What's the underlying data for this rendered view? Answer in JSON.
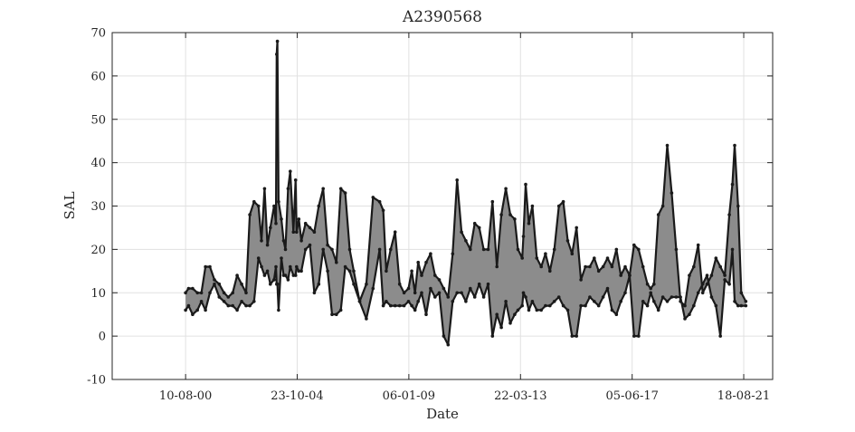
{
  "chart_data": {
    "type": "line",
    "title": "A2390568",
    "xlabel": "Date",
    "ylabel": "SAL",
    "ylim": [
      -10,
      70
    ],
    "yticks": [
      "-10",
      "0",
      "10",
      "20",
      "30",
      "40",
      "50",
      "60",
      "70"
    ],
    "xlim": [
      "1997-11-04",
      "2022-09-20"
    ],
    "xticks": [
      {
        "date": "2000-08-10",
        "label": "10-08-00"
      },
      {
        "date": "2004-10-23",
        "label": "23-10-04"
      },
      {
        "date": "2009-01-06",
        "label": "06-01-09"
      },
      {
        "date": "2013-03-22",
        "label": "22-03-13"
      },
      {
        "date": "2017-06-05",
        "label": "05-06-17"
      },
      {
        "date": "2021-08-18",
        "label": "18-08-21"
      }
    ],
    "grid": true,
    "legend": "none",
    "colors": {
      "band": "#8c8c8c",
      "line": "#1a1a1a",
      "grid": "#e1e1e1",
      "axis": "#262626"
    },
    "series": [
      {
        "style": "dense-band",
        "x": [
          "2000-08-10",
          "2000-09-20",
          "2000-11-15",
          "2001-01-20",
          "2001-03-15",
          "2001-05-10",
          "2001-07-10",
          "2001-09-10",
          "2001-11-15",
          "2002-01-20",
          "2002-03-20",
          "2002-05-20",
          "2002-07-20",
          "2002-09-20",
          "2002-11-20",
          "2003-01-10",
          "2003-03-10",
          "2003-05-10",
          "2003-06-20",
          "2003-08-01",
          "2003-09-10",
          "2003-10-20",
          "2003-12-10",
          "2004-01-05",
          "2004-01-15",
          "2004-01-25",
          "2004-02-10",
          "2004-03-20",
          "2004-04-20",
          "2004-05-15",
          "2004-06-20",
          "2004-07-20",
          "2004-09-01",
          "2004-10-01",
          "2004-10-15",
          "2004-11-15",
          "2004-12-20",
          "2005-02-15",
          "2005-04-15",
          "2005-06-15",
          "2005-08-15",
          "2005-10-15",
          "2005-12-15",
          "2006-02-15",
          "2006-04-15",
          "2006-06-15",
          "2006-08-15",
          "2006-10-15",
          "2006-12-10",
          "2007-03-01",
          "2007-06-01",
          "2007-09-01",
          "2007-12-01",
          "2008-01-20",
          "2008-03-01",
          "2008-05-01",
          "2008-07-01",
          "2008-09-01",
          "2008-11-01",
          "2009-01-01",
          "2009-02-15",
          "2009-04-01",
          "2009-05-15",
          "2009-07-01",
          "2009-09-01",
          "2009-11-01",
          "2010-01-01",
          "2010-03-01",
          "2010-05-01",
          "2010-07-01",
          "2010-09-01",
          "2010-11-01",
          "2011-01-01",
          "2011-03-01",
          "2011-05-01",
          "2011-07-01",
          "2011-09-01",
          "2011-11-01",
          "2012-01-01",
          "2012-03-01",
          "2012-05-01",
          "2012-07-01",
          "2012-09-01",
          "2012-11-01",
          "2013-01-01",
          "2013-02-15",
          "2013-04-15",
          "2013-05-01",
          "2013-06-01",
          "2013-07-15",
          "2013-09-01",
          "2013-11-01",
          "2014-01-01",
          "2014-03-01",
          "2014-05-01",
          "2014-07-01",
          "2014-09-01",
          "2014-11-01",
          "2015-01-01",
          "2015-03-01",
          "2015-05-01",
          "2015-07-01",
          "2015-09-01",
          "2015-11-01",
          "2016-01-01",
          "2016-03-01",
          "2016-05-01",
          "2016-07-01",
          "2016-09-01",
          "2016-11-01",
          "2017-01-01",
          "2017-03-01",
          "2017-05-01",
          "2017-07-01",
          "2017-09-01",
          "2017-11-01",
          "2018-01-01",
          "2018-02-15",
          "2018-04-01",
          "2018-06-01",
          "2018-08-01",
          "2018-10-01",
          "2018-12-01",
          "2019-02-01",
          "2019-04-01",
          "2019-06-01",
          "2019-08-01",
          "2019-10-01",
          "2019-12-01",
          "2020-02-01",
          "2020-04-01",
          "2020-06-01",
          "2020-08-01",
          "2020-10-01",
          "2020-12-01",
          "2021-02-01",
          "2021-03-15",
          "2021-04-15",
          "2021-06-01",
          "2021-07-15",
          "2021-09-15"
        ],
        "y_low": [
          6,
          7,
          5,
          6,
          8,
          6,
          10,
          12,
          9,
          8,
          7,
          7,
          6,
          8,
          7,
          7,
          8,
          18,
          16,
          14,
          15,
          12,
          13,
          16,
          12,
          12,
          6,
          18,
          14,
          14,
          13,
          16,
          14,
          14,
          16,
          15,
          15,
          20,
          21,
          10,
          12,
          20,
          15,
          5,
          5,
          6,
          16,
          15,
          12,
          8,
          4,
          11,
          20,
          7,
          8,
          7,
          7,
          7,
          7,
          8,
          7,
          6,
          8,
          10,
          5,
          11,
          9,
          10,
          0,
          -2,
          8,
          10,
          10,
          8,
          11,
          9,
          12,
          9,
          12,
          0,
          5,
          2,
          8,
          3,
          5,
          6,
          7,
          10,
          9,
          6,
          8,
          6,
          6,
          7,
          7,
          8,
          9,
          7,
          6,
          0,
          0,
          7,
          7,
          9,
          8,
          7,
          9,
          11,
          6,
          5,
          8,
          10,
          14,
          0,
          0,
          8,
          7,
          10,
          8,
          6,
          9,
          8,
          9,
          9,
          9,
          4,
          5,
          7,
          10,
          12,
          14,
          9,
          7,
          0,
          13,
          12,
          20,
          8,
          7,
          7,
          7
        ],
        "y_high": [
          10,
          11,
          11,
          10,
          10,
          16,
          16,
          13,
          12,
          10,
          9,
          10,
          14,
          12,
          10,
          28,
          31,
          30,
          22,
          34,
          21,
          25,
          30,
          26,
          65,
          68,
          31,
          27,
          22,
          20,
          34,
          38,
          24,
          36,
          24,
          27,
          22,
          26,
          25,
          24,
          30,
          34,
          21,
          20,
          17,
          34,
          33,
          20,
          15,
          8,
          12,
          32,
          31,
          29,
          15,
          20,
          24,
          12,
          10,
          11,
          15,
          10,
          17,
          14,
          17,
          19,
          14,
          13,
          11,
          9,
          19,
          36,
          24,
          22,
          20,
          26,
          25,
          20,
          20,
          31,
          16,
          28,
          34,
          28,
          27,
          20,
          18,
          23,
          35,
          26,
          30,
          18,
          16,
          19,
          15,
          20,
          30,
          31,
          22,
          19,
          25,
          13,
          16,
          16,
          18,
          15,
          16,
          18,
          16,
          20,
          14,
          16,
          14,
          21,
          20,
          16,
          12,
          11,
          12,
          28,
          30,
          44,
          33,
          20,
          8,
          7,
          14,
          16,
          21,
          10,
          12,
          14,
          18,
          16,
          14,
          28,
          35,
          44,
          30,
          10,
          8
        ]
      }
    ]
  }
}
